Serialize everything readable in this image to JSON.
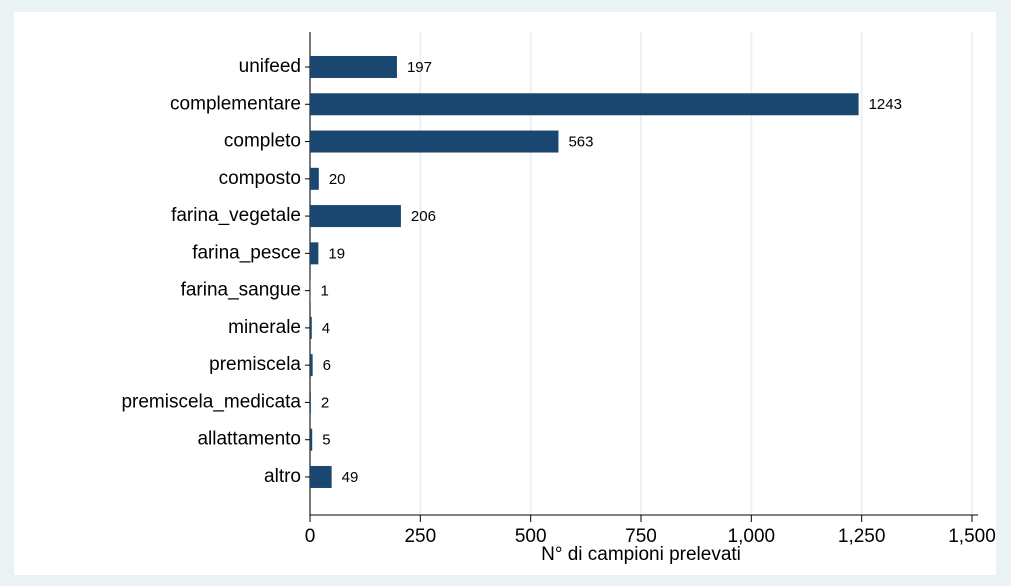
{
  "chart_data": {
    "type": "hbar",
    "categories": [
      "unifeed",
      "complementare",
      "completo",
      "composto",
      "farina_vegetale",
      "farina_pesce",
      "farina_sangue",
      "minerale",
      "premiscela",
      "premiscela_medicata",
      "allattamento",
      "altro"
    ],
    "values": [
      197,
      1243,
      563,
      20,
      206,
      19,
      1,
      4,
      6,
      2,
      5,
      49
    ],
    "color": "#1a476f",
    "xlim": [
      0,
      1500
    ],
    "xticks": [
      0,
      250,
      500,
      750,
      {
        "value": 1000,
        "label": "1,000"
      },
      {
        "value": 1250,
        "label": "1,250"
      },
      {
        "value": 1500,
        "label": "1,500"
      }
    ],
    "xlabel": "N° di campioni prelevati",
    "grid": true
  }
}
